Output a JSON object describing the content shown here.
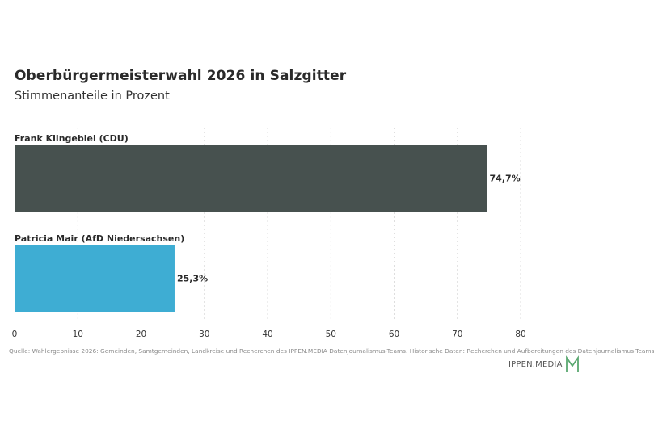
{
  "chart_data": {
    "type": "bar",
    "orientation": "horizontal",
    "title": "Oberbürgermeisterwahl 2026 in Salzgitter",
    "subtitle": "Stimmenanteile in Prozent",
    "categories": [
      "Frank Klingebiel (CDU)",
      "Patricia Mair (AfD Niedersachsen)"
    ],
    "values": [
      74.7,
      25.3
    ],
    "value_labels": [
      "74,7%",
      "25,3%"
    ],
    "colors": [
      "#47514f",
      "#3eadd3"
    ],
    "xlim": [
      0,
      80
    ],
    "xticks": [
      0,
      10,
      20,
      30,
      40,
      50,
      60,
      70,
      80
    ],
    "grid": true
  },
  "source": "Quelle: Wahlergebnisse 2026: Gemeinden, Samtgemeinden, Landkreise und Recherchen des IPPEN.MEDIA Datenjournalismus-Teams. Historische Daten: Recherchen und Aufbereitungen des Datenjournalismus-Teams",
  "logo": {
    "text": "IPPEN.MEDIA",
    "mark_color": "#5aa870"
  }
}
